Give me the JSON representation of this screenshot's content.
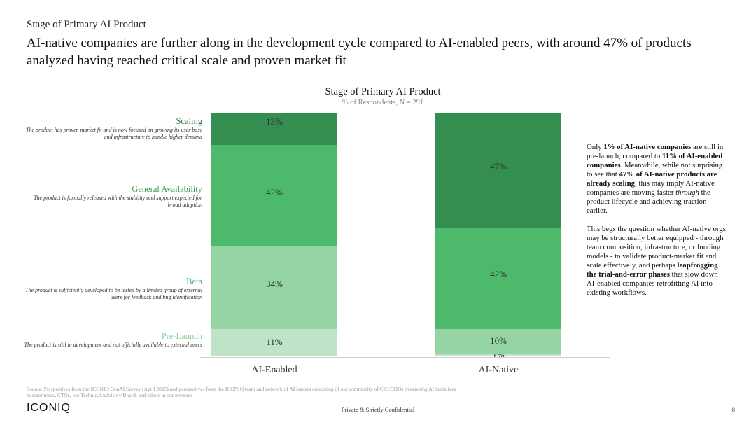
{
  "header": {
    "eyebrow": "Stage of Primary AI Product",
    "headline": "AI-native companies are further along in the development cycle compared to AI-enabled peers, with around 47% of products analyzed having reached critical scale and proven market fit"
  },
  "chart_data": {
    "type": "bar",
    "stacked": true,
    "title": "Stage of Primary AI Product",
    "subtitle": "% of Respondents, N = 291",
    "categories": [
      "AI-Enabled",
      "AI-Native"
    ],
    "ylim": [
      0,
      100
    ],
    "grid": false,
    "series": [
      {
        "name": "Pre-Launch",
        "description": "The product is still in development and not officially available to external users",
        "values": [
          11,
          1
        ],
        "labels": [
          "11%",
          "1%"
        ],
        "color": "#bfe3c8"
      },
      {
        "name": "Beta",
        "description": "The product is sufficiently developed to be tested by a limited group of external users for feedback and bug identification",
        "values": [
          34,
          10
        ],
        "labels": [
          "34%",
          "10%"
        ],
        "color": "#94d5a3"
      },
      {
        "name": "General Availability",
        "description": "The product is formally released with the stability and support expected for broad adoption",
        "values": [
          42,
          42
        ],
        "labels": [
          "42%",
          "42%"
        ],
        "color": "#4cba6a"
      },
      {
        "name": "Scaling",
        "description": "The product has proven market fit and is now focused on growing its user base and infrastructure to handle higher demand",
        "values": [
          13,
          47
        ],
        "labels": [
          "13%",
          "47%"
        ],
        "color": "#348e4f"
      }
    ]
  },
  "legend_colors": {
    "Scaling": "#2e7d46",
    "General Availability": "#3c9a56",
    "Beta": "#5fb577",
    "Pre-Launch": "#8fcf9f"
  },
  "commentary": {
    "p1": [
      {
        "t": "Only ",
        "b": false
      },
      {
        "t": "1% of AI-native companies",
        "b": true
      },
      {
        "t": " are still in pre-launch, compared to ",
        "b": false
      },
      {
        "t": "11% of AI-enabled companies",
        "b": true
      },
      {
        "t": ". Meanwhile, while not surprising to see that ",
        "b": false
      },
      {
        "t": "47% of AI-native products are already scaling",
        "b": true
      },
      {
        "t": ", this may imply AI-native companies are moving faster ",
        "b": false
      },
      {
        "t": "through",
        "i": true
      },
      {
        "t": " the product lifecycle and achieving traction earlier.",
        "b": false
      }
    ],
    "p2": [
      {
        "t": "This begs the question whether AI-native orgs may be structurally better equipped - through team composition, infrastructure, or funding models - to validate product-market fit and scale effectively, and perhaps ",
        "b": false
      },
      {
        "t": "leapfrogging the trial-and-error phases",
        "b": true
      },
      {
        "t": " that slow down AI-enabled companies retrofitting AI into existing workflows.",
        "b": false
      }
    ]
  },
  "footer": {
    "source": "Source: Perspectives from the ICONIQ GenAI Survey (April 2025) and perspectives from the ICONIQ team and network of AI leaders consisting of our community of CIO/CDOs overseeing AI initiatives in enterprises, CTOs, our Technical Advisory Board, and others in our network",
    "logo": "ICONIQ",
    "confidential": "Private & Strictly Confidential",
    "page": "8"
  }
}
